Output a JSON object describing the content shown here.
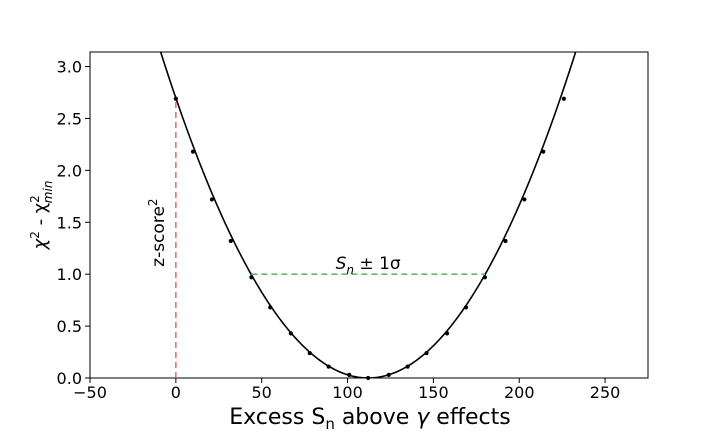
{
  "chart_data": {
    "type": "line",
    "xlabel_parts": {
      "pre": "Excess S",
      "sub": "n",
      "post": " above ",
      "greek": "γ",
      "tail": " effects"
    },
    "ylabel_parts": {
      "chi1": "χ",
      "sup1": "2",
      "mid": " - χ",
      "sup2": "2",
      "sub2": "min"
    },
    "xlim": [
      -50,
      275
    ],
    "ylim": [
      0,
      3.14
    ],
    "x_ticks": [
      -50,
      0,
      50,
      100,
      150,
      200,
      250
    ],
    "y_ticks": [
      0.0,
      0.5,
      1.0,
      1.5,
      2.0,
      2.5,
      3.0
    ],
    "x_tick_labels": [
      "−50",
      "0",
      "50",
      "100",
      "150",
      "200",
      "250"
    ],
    "y_tick_labels": [
      "0.0",
      "0.5",
      "1.0",
      "1.5",
      "2.0",
      "2.5",
      "3.0"
    ],
    "curve": {
      "minimum_x": 112,
      "sigma": 68.2,
      "color": "#000000",
      "points": {
        "x": [
          0,
          10,
          21,
          32,
          44,
          55,
          67,
          78,
          89,
          101,
          112,
          124,
          135,
          146,
          158,
          169,
          180,
          192,
          203,
          214,
          226
        ],
        "y": [
          2.69,
          2.18,
          1.72,
          1.32,
          0.97,
          0.68,
          0.43,
          0.24,
          0.11,
          0.03,
          0.0,
          0.03,
          0.11,
          0.24,
          0.43,
          0.68,
          0.97,
          1.32,
          1.72,
          2.18,
          2.69
        ]
      }
    },
    "annotations": {
      "zscore": {
        "x": 0,
        "y_top": 2.69,
        "color": "#e8706c",
        "label": "z-score",
        "label_sup": "2"
      },
      "one_sigma": {
        "y": 1.0,
        "x_start": 44,
        "x_end": 180,
        "color": "#69b36e",
        "label_pre": "S",
        "label_sub": "n",
        "label_post": " ± 1σ"
      }
    }
  }
}
